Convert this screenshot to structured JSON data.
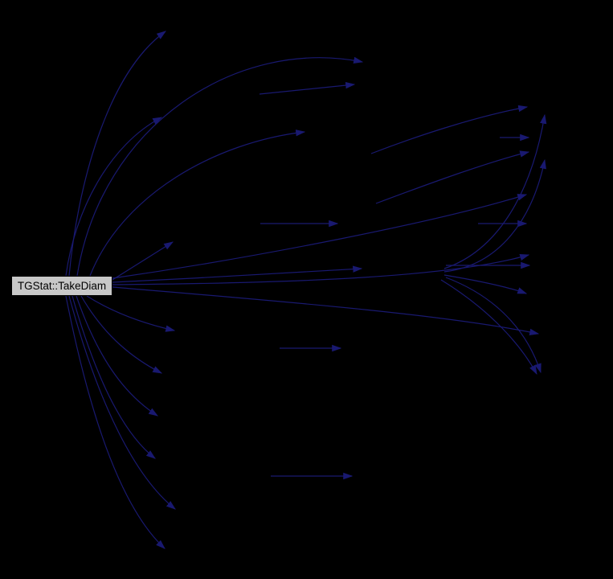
{
  "page": {
    "background_color": "#000000"
  },
  "diagram": {
    "type": "call-graph",
    "source_node": {
      "label": "TGStat::TakeDiam",
      "fill": "#c8c8c8",
      "border_color": "#000000",
      "text_color": "#000000"
    },
    "style": {
      "edge_color": "#191970",
      "edge_width": 1.2
    },
    "edges": [
      "M 86,343 C 96,235 132,92 206,39",
      "M 96,343 C 126,155 295,46 451,77",
      "M 82,343 C 93,262 136,180 201,146",
      "M 112,343 C 152,242 268,177 379,164",
      "M 140,348 L 215,301",
      "M 140,351 C 245,346 372,339 450,334",
      "M 140,346 C 320,320 545,276 655,242",
      "M 140,354 C 380,352 565,344 658,317",
      "M 140,357 C 340,374 548,390 670,415",
      "M 108,368 C 146,392 186,404 217,411",
      "M 101,368 C 131,420 168,447 201,464",
      "M 95,368 C 124,452 159,493 196,517",
      "M 90,368 C 119,470 153,539 193,570",
      "M 86,368 C 123,505 169,594 218,633",
      "M 82,368 C 113,525 153,634 205,682",
      "M 323,117 L 441,105",
      "M 324,278 L 420,278",
      "M 348,433 L 424,433",
      "M 337,592 L 438,592",
      "M 622,171 L 658,171",
      "M 595,278 L 655,278",
      "M 555,330 L 659,330",
      "M 462,191 C 532,164 602,143 656,133",
      "M 468,253 C 540,226 612,200 658,189",
      "M 553,334 C 618,312 661,243 678,143",
      "M 553,338 C 622,330 663,272 678,199",
      "M 553,342 C 601,350 633,357 655,365",
      "M 555,345 C 626,372 659,420 673,463",
      "M 549,348 C 611,386 649,430 668,465"
    ]
  }
}
